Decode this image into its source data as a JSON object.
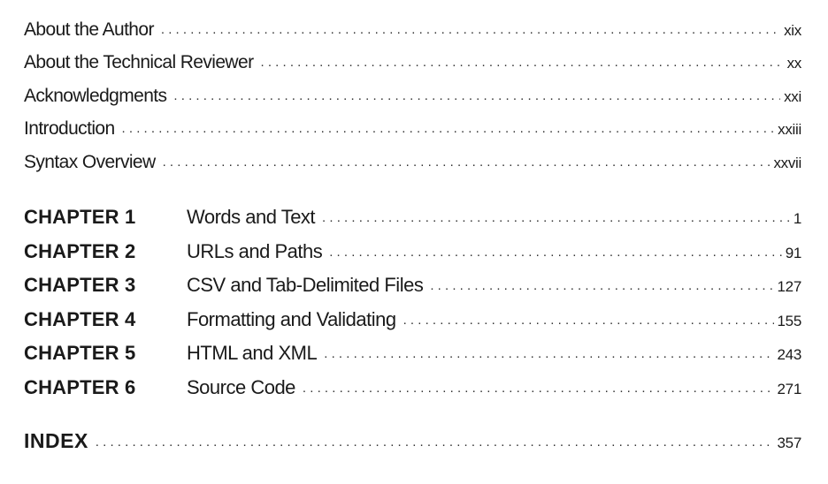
{
  "front_matter": [
    {
      "title": "About the Author",
      "page": "xix"
    },
    {
      "title": "About the Technical Reviewer",
      "page": "xx"
    },
    {
      "title": "Acknowledgments",
      "page": "xxi"
    },
    {
      "title": "Introduction",
      "page": "xxiii"
    },
    {
      "title": "Syntax Overview",
      "page": "xxvii"
    }
  ],
  "chapters": [
    {
      "label": "CHAPTER 1",
      "title": "Words and Text",
      "page": "1"
    },
    {
      "label": "CHAPTER 2",
      "title": "URLs and Paths",
      "page": "91"
    },
    {
      "label": "CHAPTER 3",
      "title": "CSV and Tab-Delimited Files",
      "page": "127"
    },
    {
      "label": "CHAPTER 4",
      "title": "Formatting and Validating",
      "page": "155"
    },
    {
      "label": "CHAPTER 5",
      "title": "HTML and XML",
      "page": "243"
    },
    {
      "label": "CHAPTER 6",
      "title": "Source Code",
      "page": "271"
    }
  ],
  "index": {
    "label": "INDEX",
    "page": "357"
  }
}
